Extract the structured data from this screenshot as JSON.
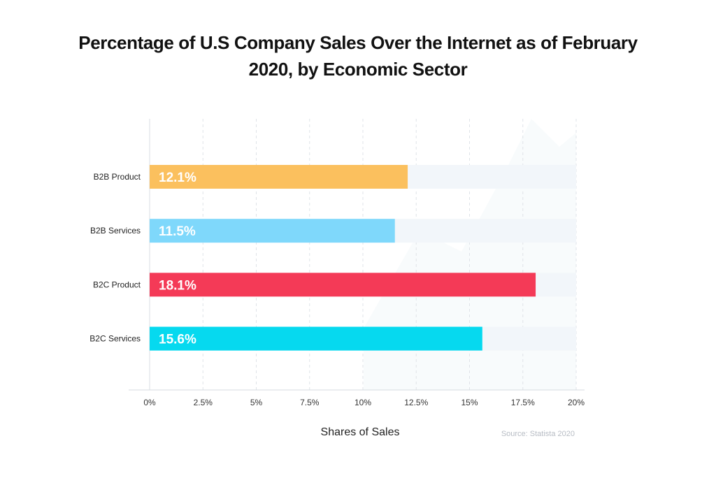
{
  "title": "Percentage of U.S Company Sales Over the Internet as of February 2020, by Economic Sector",
  "source": "Source: Statista 2020",
  "chart_data": {
    "type": "bar",
    "orientation": "horizontal",
    "title": "Percentage of U.S Company Sales Over the Internet as of February 2020, by Economic Sector",
    "xlabel": "Shares of Sales",
    "ylabel": "",
    "xlim": [
      0,
      20
    ],
    "grid": true,
    "categories": [
      "B2B Product",
      "B2B Services",
      "B2C Product",
      "B2C Services"
    ],
    "values": [
      12.1,
      11.5,
      18.1,
      15.6
    ],
    "value_labels": [
      "12.1%",
      "11.5%",
      "18.1%",
      "15.6%"
    ],
    "colors": [
      "#FBC05E",
      "#7FD8FB",
      "#F43A57",
      "#06D9EF"
    ],
    "ticks": [
      0,
      2.5,
      5,
      7.5,
      10,
      12.5,
      15,
      17.5,
      20
    ],
    "tick_labels": [
      "0%",
      "2.5%",
      "5%",
      "7.5%",
      "10%",
      "12.5%",
      "15%",
      "17.5%",
      "20%"
    ]
  }
}
